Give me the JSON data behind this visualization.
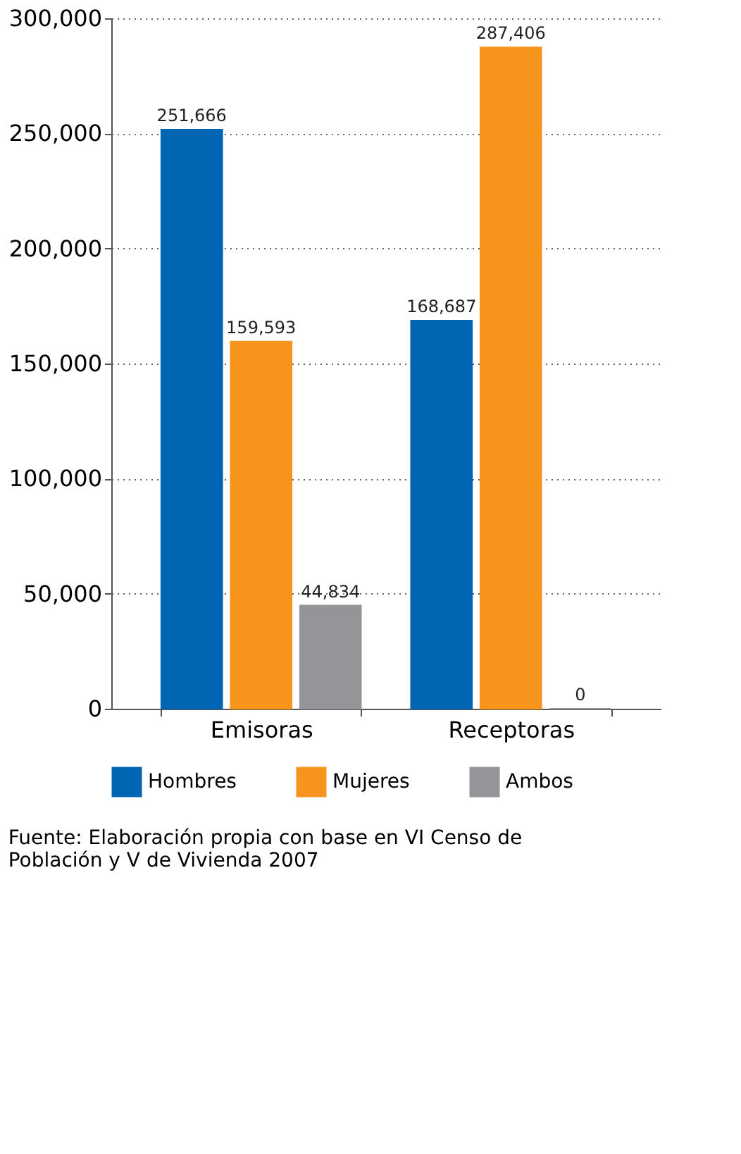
{
  "chart_data": {
    "type": "bar",
    "categories": [
      "Emisoras",
      "Receptoras"
    ],
    "series": [
      {
        "name": "Hombres",
        "color": "#0066b3",
        "values": [
          251666,
          168687
        ],
        "value_labels": [
          "251,666",
          "168,687"
        ]
      },
      {
        "name": "Mujeres",
        "color": "#f7941d",
        "values": [
          159593,
          287406
        ],
        "value_labels": [
          "159,593",
          "287,406"
        ]
      },
      {
        "name": "Ambos",
        "color": "#939598",
        "values": [
          44834,
          0
        ],
        "value_labels": [
          "44,834",
          "0"
        ]
      }
    ],
    "ylim": [
      0,
      300000
    ],
    "yticks": [
      0,
      {
        "value": 50000,
        "label": "50,000"
      },
      {
        "value": 100000,
        "label": "100,000"
      },
      {
        "value": 150000,
        "label": "150,000"
      },
      {
        "value": 200000,
        "label": "200,000"
      },
      {
        "value": 250000,
        "label": "250,000"
      },
      {
        "value": 300000,
        "label": "300,000"
      }
    ],
    "grid": "y",
    "legend": "bottom",
    "annotations": [
      "Fuente: Elaboración propia con base en VI Censo de Población y V de Vivienda 2007"
    ]
  }
}
